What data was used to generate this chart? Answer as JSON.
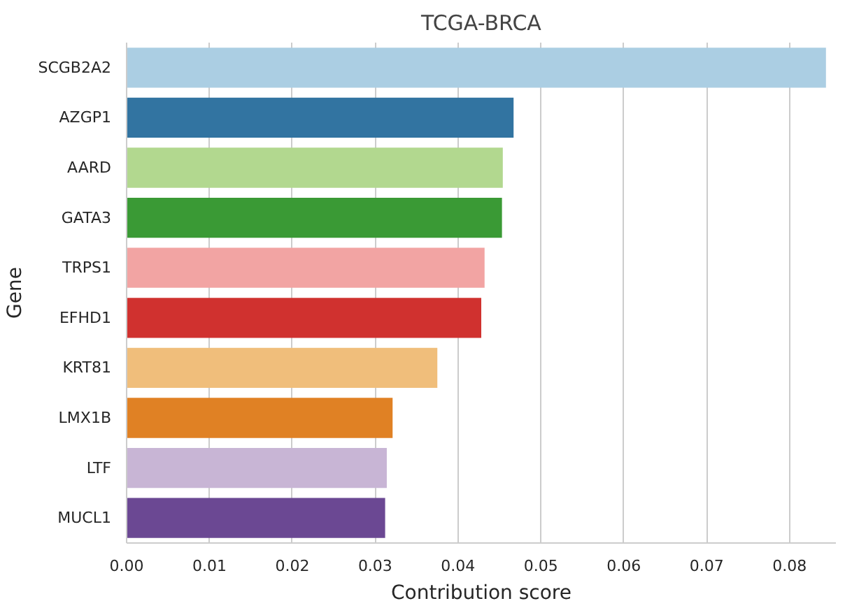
{
  "chart_data": {
    "type": "bar",
    "orientation": "horizontal",
    "title": "TCGA-BRCA",
    "xlabel": "Contribution score",
    "ylabel": "Gene",
    "categories": [
      "SCGB2A2",
      "AZGP1",
      "AARD",
      "GATA3",
      "TRPS1",
      "EFHD1",
      "KRT81",
      "LMX1B",
      "LTF",
      "MUCL1"
    ],
    "values": [
      0.0844,
      0.0467,
      0.0454,
      0.0453,
      0.0432,
      0.0428,
      0.0375,
      0.0321,
      0.0314,
      0.0312
    ],
    "colors": [
      "#abcee3",
      "#3274a1",
      "#b2d88f",
      "#3a9a35",
      "#f2a4a3",
      "#d0312f",
      "#f0be7b",
      "#e08124",
      "#c8b5d5",
      "#6b4893"
    ],
    "xlim": [
      0,
      0.0856
    ],
    "xticks": [
      {
        "value": 0,
        "label": "0.00"
      },
      {
        "value": 0.01,
        "label": "0.01"
      },
      {
        "value": 0.02,
        "label": "0.02"
      },
      {
        "value": 0.03,
        "label": "0.03"
      },
      {
        "value": 0.04,
        "label": "0.04"
      },
      {
        "value": 0.05,
        "label": "0.05"
      },
      {
        "value": 0.06,
        "label": "0.06"
      },
      {
        "value": 0.07,
        "label": "0.07"
      },
      {
        "value": 0.08,
        "label": "0.08"
      }
    ],
    "grid": "x"
  }
}
